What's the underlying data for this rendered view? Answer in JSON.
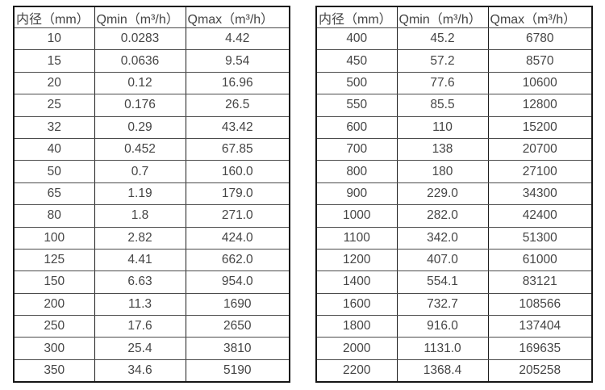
{
  "colors": {
    "background": "#ffffff",
    "outer_border": "#161616",
    "vertical_grid": "#1e1e1e",
    "horizontal_grid": "#4c4c4c",
    "text": "#454545"
  },
  "tables": [
    {
      "name": "flow-table-small-diameters",
      "headers": [
        "内径（mm）",
        "Qmin（m³/h）",
        "Qmax（m³/h）"
      ],
      "rows": [
        [
          "10",
          "0.0283",
          "4.42"
        ],
        [
          "15",
          "0.0636",
          "9.54"
        ],
        [
          "20",
          "0.12",
          "16.96"
        ],
        [
          "25",
          "0.176",
          "26.5"
        ],
        [
          "32",
          "0.29",
          "43.42"
        ],
        [
          "40",
          "0.452",
          "67.85"
        ],
        [
          "50",
          "0.7",
          "160.0"
        ],
        [
          "65",
          "1.19",
          "179.0"
        ],
        [
          "80",
          "1.8",
          "271.0"
        ],
        [
          "100",
          "2.82",
          "424.0"
        ],
        [
          "125",
          "4.41",
          "662.0"
        ],
        [
          "150",
          "6.63",
          "954.0"
        ],
        [
          "200",
          "11.3",
          "1690"
        ],
        [
          "250",
          "17.6",
          "2650"
        ],
        [
          "300",
          "25.4",
          "3810"
        ],
        [
          "350",
          "34.6",
          "5190"
        ]
      ]
    },
    {
      "name": "flow-table-large-diameters",
      "headers": [
        "内径（mm）",
        "Qmin（m³/h）",
        "Qmax（m³/h）"
      ],
      "rows": [
        [
          "400",
          "45.2",
          "6780"
        ],
        [
          "450",
          "57.2",
          "8570"
        ],
        [
          "500",
          "77.6",
          "10600"
        ],
        [
          "550",
          "85.5",
          "12800"
        ],
        [
          "600",
          "110",
          "15200"
        ],
        [
          "700",
          "138",
          "20700"
        ],
        [
          "800",
          "180",
          "27100"
        ],
        [
          "900",
          "229.0",
          "34300"
        ],
        [
          "1000",
          "282.0",
          "42400"
        ],
        [
          "1100",
          "342.0",
          "51300"
        ],
        [
          "1200",
          "407.0",
          "61000"
        ],
        [
          "1400",
          "554.1",
          "83121"
        ],
        [
          "1600",
          "732.7",
          "108566"
        ],
        [
          "1800",
          "916.0",
          "137404"
        ],
        [
          "2000",
          "1131.0",
          "169635"
        ],
        [
          "2200",
          "1368.4",
          "205258"
        ]
      ]
    }
  ]
}
